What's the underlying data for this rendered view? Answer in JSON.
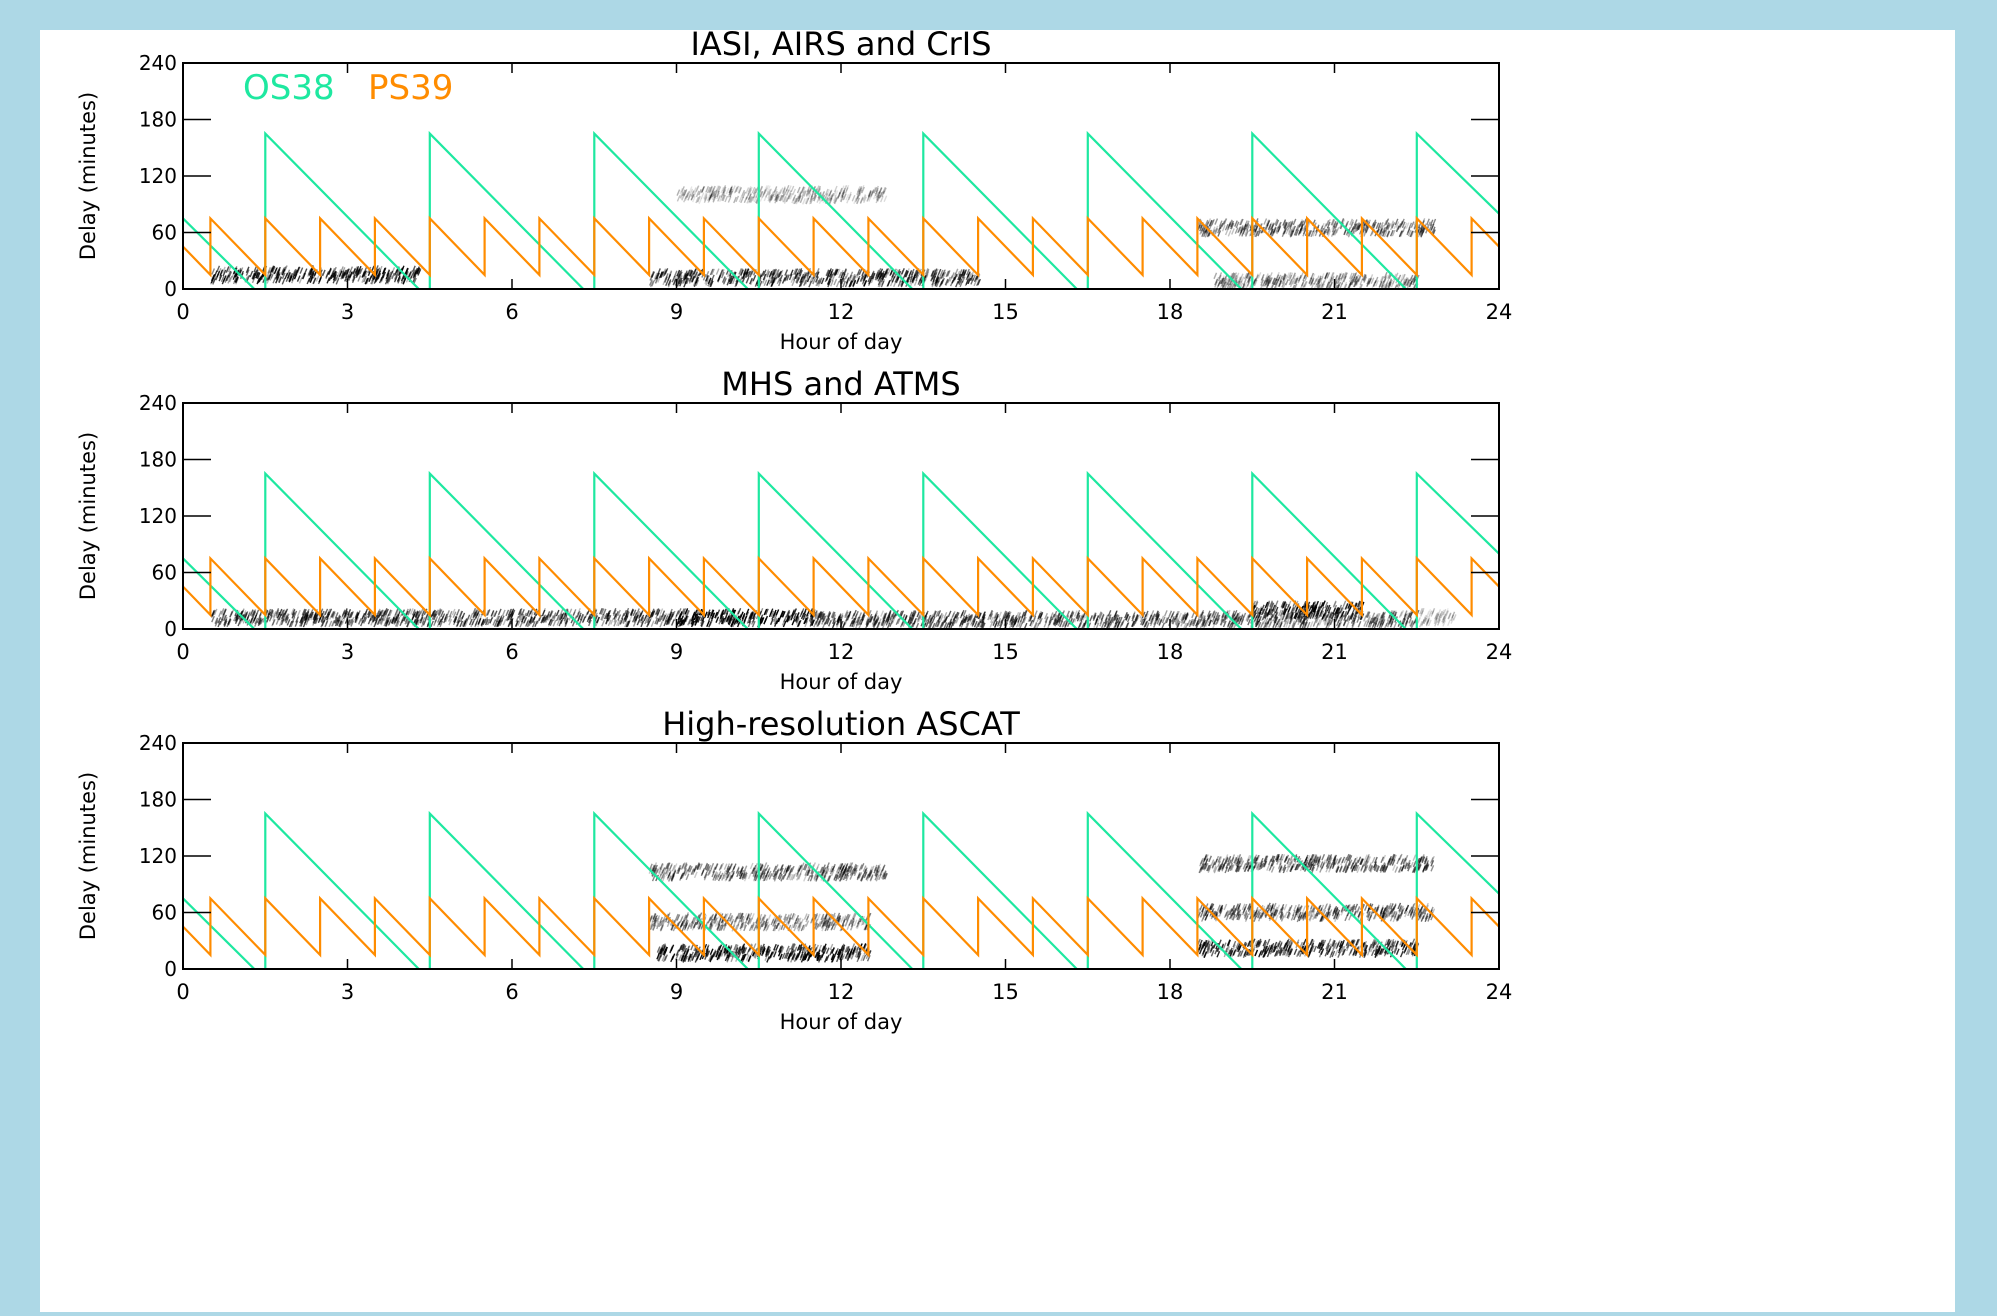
{
  "chart_data": [
    {
      "type": "line",
      "title": "IASI, AIRS and CrIS",
      "xlabel": "Hour of day",
      "ylabel": "Delay (minutes)",
      "xlim": [
        0,
        24
      ],
      "ylim": [
        0,
        240
      ],
      "xticks": [
        "0",
        "3",
        "6",
        "9",
        "12",
        "15",
        "18",
        "21",
        "24"
      ],
      "yticks": [
        "0",
        "60",
        "120",
        "180",
        "240"
      ],
      "legend_location": "top-left",
      "series": [
        {
          "name": "OS38",
          "color": "#1ee8a0",
          "x": [
            0,
            1.3,
            null,
            1.5,
            1.5,
            4.3,
            null,
            4.5,
            4.5,
            7.3,
            null,
            7.5,
            7.5,
            10.3,
            null,
            10.5,
            10.5,
            13.3,
            null,
            13.5,
            13.5,
            16.3,
            null,
            16.5,
            16.5,
            19.3,
            null,
            19.5,
            19.5,
            22.3,
            null,
            22.5,
            22.5,
            24
          ],
          "y": [
            75,
            0,
            null,
            0,
            165,
            0,
            null,
            0,
            165,
            0,
            null,
            0,
            165,
            0,
            null,
            0,
            165,
            0,
            null,
            0,
            165,
            0,
            null,
            0,
            165,
            0,
            null,
            0,
            165,
            0,
            null,
            0,
            165,
            80
          ]
        },
        {
          "name": "PS39",
          "color": "#ff8c00",
          "x": [
            0,
            0.5,
            0.5,
            1.5,
            1.5,
            2.5,
            2.5,
            3.5,
            3.5,
            4.5,
            4.5,
            5.5,
            5.5,
            6.5,
            6.5,
            7.5,
            7.5,
            8.5,
            8.5,
            9.5,
            9.5,
            10.5,
            10.5,
            11.5,
            11.5,
            12.5,
            12.5,
            13.5,
            13.5,
            14.5,
            14.5,
            15.5,
            15.5,
            16.5,
            16.5,
            17.5,
            17.5,
            18.5,
            18.5,
            19.5,
            19.5,
            20.5,
            20.5,
            21.5,
            21.5,
            22.5,
            22.5,
            23.5,
            23.5,
            24
          ],
          "y": [
            45,
            15,
            75,
            15,
            75,
            15,
            75,
            15,
            75,
            15,
            75,
            15,
            75,
            15,
            75,
            15,
            75,
            15,
            75,
            15,
            75,
            15,
            75,
            15,
            75,
            15,
            75,
            15,
            75,
            15,
            75,
            15,
            75,
            15,
            75,
            15,
            75,
            15,
            75,
            15,
            75,
            15,
            75,
            15,
            75,
            15,
            75,
            15,
            75,
            45
          ]
        }
      ],
      "observation_bands": [
        {
          "x0": 0.5,
          "x1": 4.3,
          "y": 15,
          "darkness": 0.75
        },
        {
          "x0": 8.5,
          "x1": 14.5,
          "y": 12,
          "darkness": 0.65
        },
        {
          "x0": 9.0,
          "x1": 12.8,
          "y": 100,
          "darkness": 0.25
        },
        {
          "x0": 18.5,
          "x1": 22.8,
          "y": 65,
          "darkness": 0.45
        },
        {
          "x0": 18.8,
          "x1": 22.5,
          "y": 8,
          "darkness": 0.35
        }
      ]
    },
    {
      "type": "line",
      "title": "MHS and ATMS",
      "xlabel": "Hour of day",
      "ylabel": "Delay (minutes)",
      "xlim": [
        0,
        24
      ],
      "ylim": [
        0,
        240
      ],
      "xticks": [
        "0",
        "3",
        "6",
        "9",
        "12",
        "15",
        "18",
        "21",
        "24"
      ],
      "yticks": [
        "0",
        "60",
        "120",
        "180",
        "240"
      ],
      "series": [
        {
          "color": "#1ee8a0",
          "x": [
            0,
            1.3,
            null,
            1.5,
            1.5,
            4.3,
            null,
            4.5,
            4.5,
            7.3,
            null,
            7.5,
            7.5,
            10.3,
            null,
            10.5,
            10.5,
            13.3,
            null,
            13.5,
            13.5,
            16.3,
            null,
            16.5,
            16.5,
            19.3,
            null,
            19.5,
            19.5,
            22.3,
            null,
            22.5,
            22.5,
            24
          ],
          "y": [
            75,
            0,
            null,
            0,
            165,
            0,
            null,
            0,
            165,
            0,
            null,
            0,
            165,
            0,
            null,
            0,
            165,
            0,
            null,
            0,
            165,
            0,
            null,
            0,
            165,
            0,
            null,
            0,
            165,
            0,
            null,
            0,
            165,
            80
          ]
        },
        {
          "color": "#ff8c00",
          "x": [
            0,
            0.5,
            0.5,
            1.5,
            1.5,
            2.5,
            2.5,
            3.5,
            3.5,
            4.5,
            4.5,
            5.5,
            5.5,
            6.5,
            6.5,
            7.5,
            7.5,
            8.5,
            8.5,
            9.5,
            9.5,
            10.5,
            10.5,
            11.5,
            11.5,
            12.5,
            12.5,
            13.5,
            13.5,
            14.5,
            14.5,
            15.5,
            15.5,
            16.5,
            16.5,
            17.5,
            17.5,
            18.5,
            18.5,
            19.5,
            19.5,
            20.5,
            20.5,
            21.5,
            21.5,
            22.5,
            22.5,
            23.5,
            23.5,
            24
          ],
          "y": [
            45,
            15,
            75,
            15,
            75,
            15,
            75,
            15,
            75,
            15,
            75,
            15,
            75,
            15,
            75,
            15,
            75,
            15,
            75,
            15,
            75,
            15,
            75,
            15,
            75,
            15,
            75,
            15,
            75,
            15,
            75,
            15,
            75,
            15,
            75,
            15,
            75,
            15,
            75,
            15,
            75,
            15,
            75,
            15,
            75,
            15,
            75,
            15,
            75,
            45
          ]
        }
      ],
      "observation_bands": [
        {
          "x0": 0.5,
          "x1": 9.0,
          "y": 12,
          "darkness": 0.6
        },
        {
          "x0": 9.0,
          "x1": 11.5,
          "y": 12,
          "darkness": 0.9
        },
        {
          "x0": 11.5,
          "x1": 17.5,
          "y": 10,
          "darkness": 0.55
        },
        {
          "x0": 17.5,
          "x1": 22.5,
          "y": 10,
          "darkness": 0.5
        },
        {
          "x0": 19.5,
          "x1": 21.5,
          "y": 20,
          "darkness": 0.8
        },
        {
          "x0": 22.5,
          "x1": 23.2,
          "y": 12,
          "darkness": 0.2
        }
      ]
    },
    {
      "type": "line",
      "title": "High-resolution ASCAT",
      "xlabel": "Hour of day",
      "ylabel": "Delay (minutes)",
      "xlim": [
        0,
        24
      ],
      "ylim": [
        0,
        240
      ],
      "xticks": [
        "0",
        "3",
        "6",
        "9",
        "12",
        "15",
        "18",
        "21",
        "24"
      ],
      "yticks": [
        "0",
        "60",
        "120",
        "180",
        "240"
      ],
      "series": [
        {
          "color": "#1ee8a0",
          "x": [
            0,
            1.3,
            null,
            1.5,
            1.5,
            4.3,
            null,
            4.5,
            4.5,
            7.3,
            null,
            7.5,
            7.5,
            10.3,
            null,
            10.5,
            10.5,
            13.3,
            null,
            13.5,
            13.5,
            16.3,
            null,
            16.5,
            16.5,
            19.3,
            null,
            19.5,
            19.5,
            22.3,
            null,
            22.5,
            22.5,
            24
          ],
          "y": [
            75,
            0,
            null,
            0,
            165,
            0,
            null,
            0,
            165,
            0,
            null,
            0,
            165,
            0,
            null,
            0,
            165,
            0,
            null,
            0,
            165,
            0,
            null,
            0,
            165,
            0,
            null,
            0,
            165,
            0,
            null,
            0,
            165,
            80
          ]
        },
        {
          "color": "#ff8c00",
          "x": [
            0,
            0.5,
            0.5,
            1.5,
            1.5,
            2.5,
            2.5,
            3.5,
            3.5,
            4.5,
            4.5,
            5.5,
            5.5,
            6.5,
            6.5,
            7.5,
            7.5,
            8.5,
            8.5,
            9.5,
            9.5,
            10.5,
            10.5,
            11.5,
            11.5,
            12.5,
            12.5,
            13.5,
            13.5,
            14.5,
            14.5,
            15.5,
            15.5,
            16.5,
            16.5,
            17.5,
            17.5,
            18.5,
            18.5,
            19.5,
            19.5,
            20.5,
            20.5,
            21.5,
            21.5,
            22.5,
            22.5,
            23.5,
            23.5,
            24
          ],
          "y": [
            45,
            15,
            75,
            15,
            75,
            15,
            75,
            15,
            75,
            15,
            75,
            15,
            75,
            15,
            75,
            15,
            75,
            15,
            75,
            15,
            75,
            15,
            75,
            15,
            75,
            15,
            75,
            15,
            75,
            15,
            75,
            15,
            75,
            15,
            75,
            15,
            75,
            15,
            75,
            15,
            75,
            15,
            75,
            15,
            75,
            15,
            75,
            15,
            75,
            45
          ]
        }
      ],
      "observation_bands": [
        {
          "x0": 8.5,
          "x1": 12.8,
          "y": 103,
          "darkness": 0.45
        },
        {
          "x0": 8.5,
          "x1": 12.5,
          "y": 50,
          "darkness": 0.4
        },
        {
          "x0": 8.6,
          "x1": 12.5,
          "y": 17,
          "darkness": 0.8
        },
        {
          "x0": 18.5,
          "x1": 22.8,
          "y": 112,
          "darkness": 0.5
        },
        {
          "x0": 18.5,
          "x1": 22.8,
          "y": 60,
          "darkness": 0.5
        },
        {
          "x0": 18.5,
          "x1": 22.5,
          "y": 22,
          "darkness": 0.7
        }
      ]
    }
  ]
}
